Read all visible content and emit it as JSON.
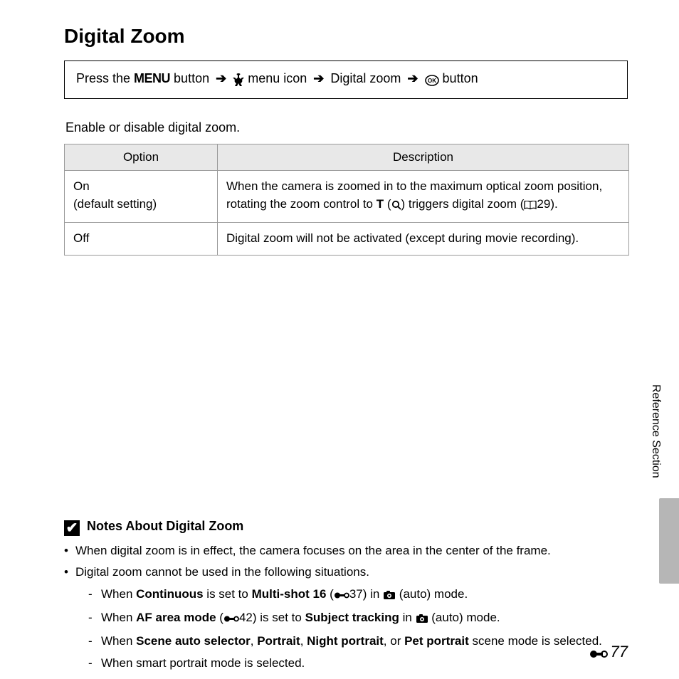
{
  "title": "Digital Zoom",
  "navpath": {
    "press_the": "Press the ",
    "menu_label": "MENU",
    "after_menu": " button ",
    "after_wrench": " menu icon ",
    "digital_zoom": " Digital zoom ",
    "after_ok": " button"
  },
  "intro": "Enable or disable digital zoom.",
  "table": {
    "headers": {
      "option": "Option",
      "description": "Description"
    },
    "rows": [
      {
        "option_l1": "On",
        "option_l2": "(default setting)",
        "desc_pre": "When the camera is zoomed in to the maximum optical zoom position, rotating the zoom control to ",
        "desc_T": "T",
        "desc_mid1": " (",
        "desc_mid2": ") triggers digital zoom (",
        "desc_pgref": "29).",
        "has_icons": true
      },
      {
        "option_l1": "Off",
        "desc_pre": "Digital zoom will not be activated (except during movie recording).",
        "has_icons": false
      }
    ]
  },
  "notes": {
    "heading": "Notes About Digital Zoom",
    "bullets": [
      {
        "text": "When digital zoom is in effect, the camera focuses on the area in the center of the frame."
      },
      {
        "text": "Digital zoom cannot be used in the following situations.",
        "sub": [
          {
            "pre": "When ",
            "b1": "Continuous",
            "mid1": " is set to ",
            "b2": "Multi-shot 16",
            "mid2": " (",
            "ref": "37) in ",
            "post": " (auto) mode.",
            "hasCam": true
          },
          {
            "pre": "When ",
            "b1": "AF area mode",
            "mid1": " (",
            "ref": "42) is set to ",
            "b2": "Subject tracking",
            "mid2": " in ",
            "post": " (auto) mode.",
            "hasCam": true,
            "refFirst": true
          },
          {
            "pre": "When ",
            "b1": "Scene auto selector",
            "mid1": ", ",
            "b2": "Portrait",
            "mid2": ", ",
            "b3": "Night portrait",
            "mid3": ", or ",
            "b4": "Pet portrait",
            "post": " scene mode is selected."
          },
          {
            "pre": "When smart portrait mode is selected."
          }
        ]
      }
    ]
  },
  "sidebar_label": "Reference Section",
  "page_number": "77",
  "colors": {
    "header_bg": "#e8e8e8",
    "border": "#9a9a9a",
    "tab": "#b6b6b6"
  }
}
